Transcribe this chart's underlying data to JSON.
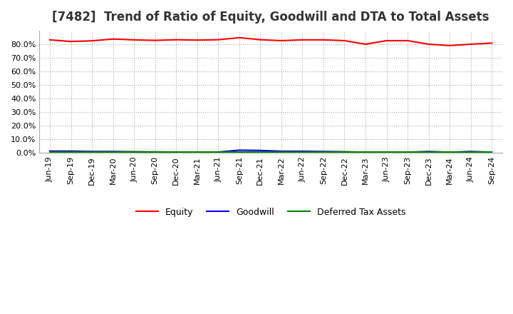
{
  "title": "[7482]  Trend of Ratio of Equity, Goodwill and DTA to Total Assets",
  "x_labels": [
    "Jun-19",
    "Sep-19",
    "Dec-19",
    "Mar-20",
    "Jun-20",
    "Sep-20",
    "Dec-20",
    "Mar-21",
    "Jun-21",
    "Sep-21",
    "Dec-21",
    "Mar-22",
    "Jun-22",
    "Sep-22",
    "Dec-22",
    "Mar-23",
    "Jun-23",
    "Sep-23",
    "Dec-23",
    "Mar-24",
    "Jun-24",
    "Sep-24"
  ],
  "equity": [
    0.832,
    0.82,
    0.825,
    0.838,
    0.832,
    0.828,
    0.833,
    0.83,
    0.833,
    0.848,
    0.833,
    0.826,
    0.832,
    0.832,
    0.826,
    0.8,
    0.826,
    0.826,
    0.8,
    0.79,
    0.8,
    0.808
  ],
  "goodwill": [
    0.013,
    0.013,
    0.01,
    0.01,
    0.008,
    0.007,
    0.006,
    0.005,
    0.006,
    0.02,
    0.018,
    0.012,
    0.012,
    0.01,
    0.008,
    0.005,
    0.005,
    0.005,
    0.01,
    0.005,
    0.01,
    0.005
  ],
  "dta": [
    0.005,
    0.005,
    0.005,
    0.005,
    0.005,
    0.005,
    0.005,
    0.005,
    0.005,
    0.005,
    0.005,
    0.005,
    0.005,
    0.005,
    0.005,
    0.005,
    0.005,
    0.005,
    0.005,
    0.005,
    0.005,
    0.005
  ],
  "equity_color": "#ff0000",
  "goodwill_color": "#0000ff",
  "dta_color": "#008000",
  "ylim": [
    0.0,
    0.9
  ],
  "yticks": [
    0.0,
    0.1,
    0.2,
    0.3,
    0.4,
    0.5,
    0.6,
    0.7,
    0.8
  ],
  "background_color": "#ffffff",
  "grid_color": "#aaaaaa",
  "title_fontsize": 12,
  "legend_labels": [
    "Equity",
    "Goodwill",
    "Deferred Tax Assets"
  ]
}
